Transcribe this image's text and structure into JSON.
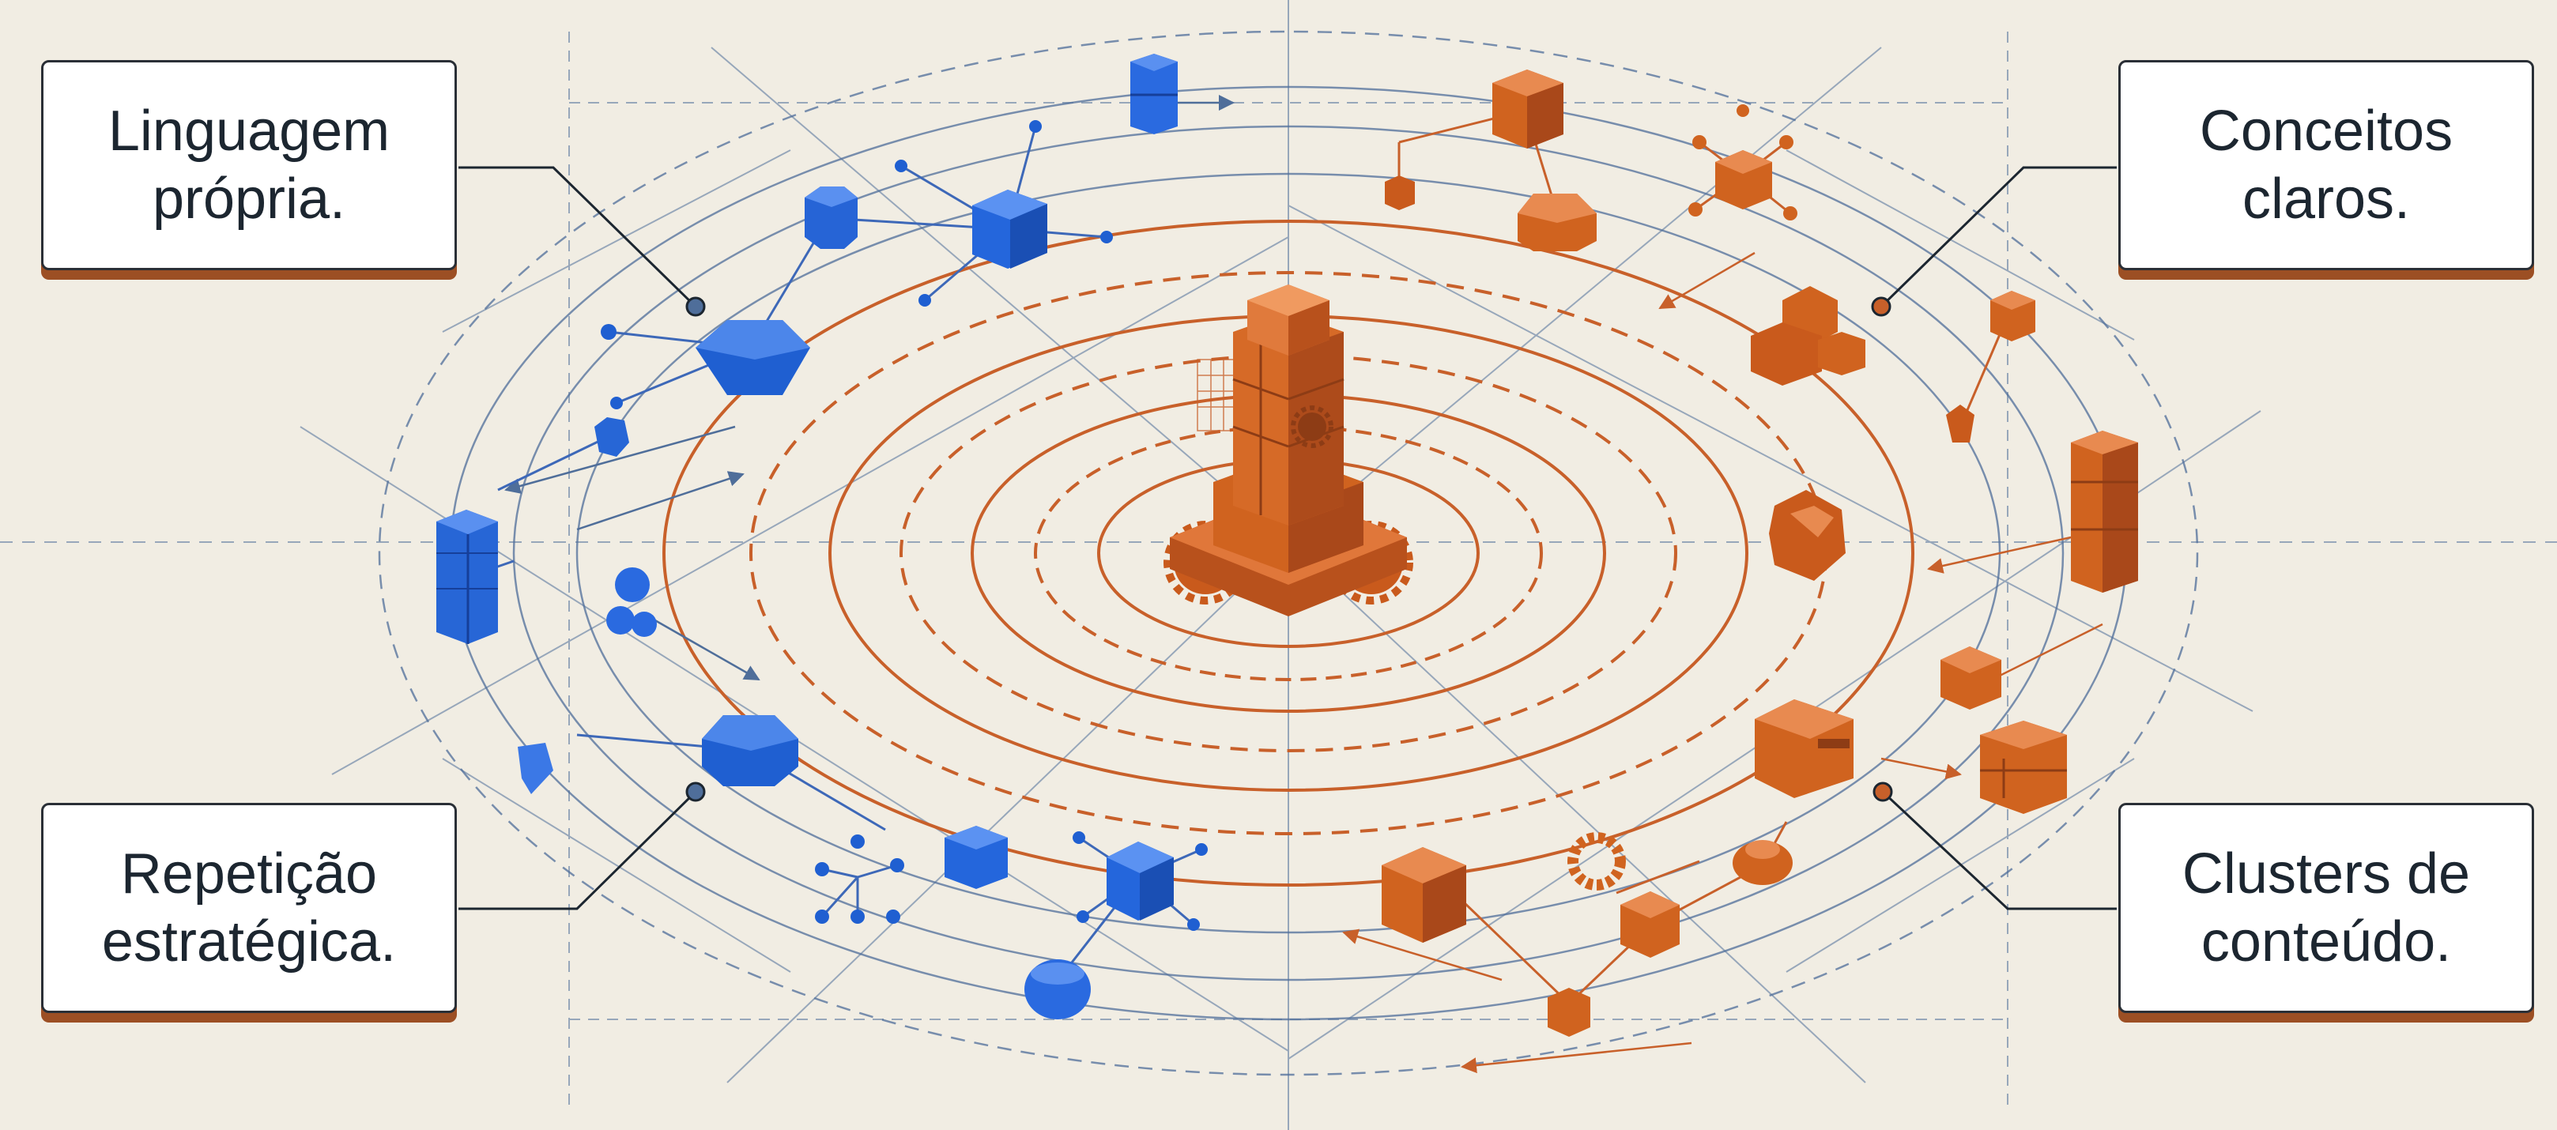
{
  "callouts": {
    "top_left": "Linguagem\nprópria.",
    "top_right": "Conceitos\nclaros.",
    "bottom_left": "Repetição\nestratégica.",
    "bottom_right": "Clusters de\nconteúdo."
  },
  "colors": {
    "background": "#f1ede3",
    "blue_accent": "#1f5fd1",
    "orange_accent": "#d0631f",
    "guide_lines": "#4f6e9a",
    "card_shadow": "#9c4f24",
    "text": "#1c2630"
  },
  "icons": {
    "center": "tower-with-gears-icon",
    "left_cluster": "blue-block-network-icon",
    "right_cluster": "orange-block-network-icon"
  }
}
